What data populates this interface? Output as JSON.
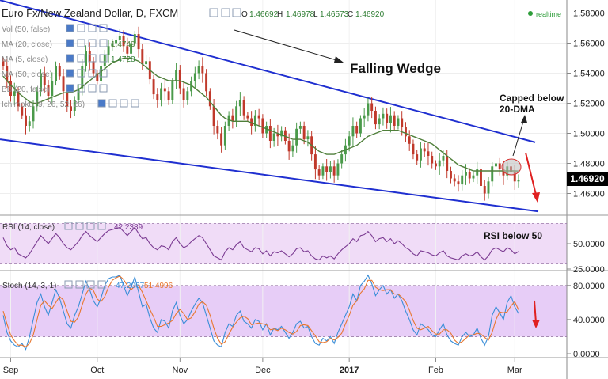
{
  "header": {
    "symbol": "Euro Fx/New Zealand Dollar, D, FXCM",
    "ohlc_o_label": "O",
    "ohlc_o": "1.46692",
    "ohlc_h_label": "H",
    "ohlc_h": "1.46978",
    "ohlc_l_label": "L",
    "ohlc_l": "1.46573",
    "ohlc_c_label": "C",
    "ohlc_c": "1.46920",
    "realtime": "realtime"
  },
  "indicators": [
    {
      "label": "Vol (50, false)",
      "value": ""
    },
    {
      "label": "MA (20, close)",
      "value": "1.4749"
    },
    {
      "label": "MA (5, close)",
      "value": "1.4728"
    },
    {
      "label": "MA (50, close)",
      "value": ""
    },
    {
      "label": "BB (20, false)",
      "value": ""
    },
    {
      "label": "Ichimoku (9, 26, 52, 26)",
      "value": ""
    }
  ],
  "annotations": {
    "pattern": "Falling Wedge",
    "capped": "Capped below\n20-DMA",
    "rsi_note": "RSI below 50"
  },
  "rsi_panel": {
    "label": "RSI (14, close)",
    "value": "42.2389"
  },
  "stoch_panel": {
    "label": "Stoch (14, 3, 1)",
    "k": "47.2067",
    "d": "51.4996"
  },
  "colors": {
    "up": "#4a9a4a",
    "down": "#c0392b",
    "ma20": "#4f7f3a",
    "wedge": "#1f2fd0",
    "rsi": "#7b3b92",
    "stoch_k": "#3a8ed8",
    "stoch_d": "#e8772e",
    "band": "#f0dcf7",
    "arrow": "#e02020",
    "price_box": "#000000"
  },
  "chart_data": [
    {
      "type": "candlestick",
      "title": "Euro Fx/New Zealand Dollar, D, FXCM",
      "ylim": [
        1.445,
        1.585
      ],
      "y_ticks": [
        "1.58000",
        "1.56000",
        "1.54000",
        "1.52000",
        "1.50000",
        "1.48000",
        "1.46000"
      ],
      "last_price": "1.46920",
      "x_ticks": [
        "Sep",
        "Oct",
        "Nov",
        "Dec",
        "2017",
        "Feb",
        "Mar"
      ],
      "close": [
        1.545,
        1.535,
        1.525,
        1.528,
        1.518,
        1.512,
        1.505,
        1.508,
        1.518,
        1.528,
        1.54,
        1.532,
        1.525,
        1.535,
        1.545,
        1.538,
        1.528,
        1.518,
        1.515,
        1.522,
        1.53,
        1.545,
        1.555,
        1.548,
        1.54,
        1.535,
        1.545,
        1.552,
        1.558,
        1.56,
        1.562,
        1.565,
        1.558,
        1.553,
        1.56,
        1.566,
        1.556,
        1.546,
        1.548,
        1.536,
        1.526,
        1.522,
        1.53,
        1.528,
        1.522,
        1.535,
        1.542,
        1.53,
        1.522,
        1.528,
        1.535,
        1.54,
        1.545,
        1.54,
        1.528,
        1.518,
        1.505,
        1.5,
        1.492,
        1.505,
        1.512,
        1.508,
        1.518,
        1.522,
        1.512,
        1.51,
        1.505,
        1.512,
        1.51,
        1.5,
        1.505,
        1.495,
        1.5,
        1.498,
        1.502,
        1.495,
        1.488,
        1.492,
        1.503,
        1.505,
        1.496,
        1.498,
        1.486,
        1.476,
        1.472,
        1.478,
        1.474,
        1.478,
        1.472,
        1.48,
        1.486,
        1.492,
        1.498,
        1.505,
        1.5,
        1.51,
        1.512,
        1.52,
        1.515,
        1.506,
        1.51,
        1.513,
        1.507,
        1.512,
        1.505,
        1.51,
        1.504,
        1.498,
        1.493,
        1.486,
        1.482,
        1.49,
        1.488,
        1.485,
        1.48,
        1.478,
        1.482,
        1.485,
        1.475,
        1.47,
        1.468,
        1.466,
        1.472,
        1.474,
        1.47,
        1.472,
        1.476,
        1.465,
        1.46,
        1.468,
        1.478,
        1.48,
        1.476,
        1.472,
        1.478,
        1.474,
        1.468,
        1.4692
      ],
      "ma20": [
        1.538,
        1.535,
        1.532,
        1.53,
        1.527,
        1.525,
        1.523,
        1.521,
        1.52,
        1.52,
        1.521,
        1.522,
        1.523,
        1.524,
        1.525,
        1.526,
        1.527,
        1.527,
        1.527,
        1.528,
        1.529,
        1.531,
        1.533,
        1.535,
        1.537,
        1.539,
        1.541,
        1.543,
        1.545,
        1.547,
        1.548,
        1.549,
        1.55,
        1.55,
        1.55,
        1.549,
        1.548,
        1.546,
        1.544,
        1.542,
        1.54,
        1.538,
        1.537,
        1.536,
        1.535,
        1.535,
        1.535,
        1.535,
        1.534,
        1.533,
        1.532,
        1.53,
        1.528,
        1.526,
        1.524,
        1.521,
        1.518,
        1.515,
        1.512,
        1.51,
        1.509,
        1.508,
        1.508,
        1.508,
        1.508,
        1.508,
        1.507,
        1.506,
        1.505,
        1.504,
        1.503,
        1.502,
        1.501,
        1.5,
        1.499,
        1.498,
        1.497,
        1.496,
        1.496,
        1.496,
        1.495,
        1.494,
        1.492,
        1.49,
        1.488,
        1.487,
        1.486,
        1.486,
        1.486,
        1.487,
        1.488,
        1.489,
        1.49,
        1.491,
        1.492,
        1.494,
        1.496,
        1.498,
        1.499,
        1.5,
        1.501,
        1.502,
        1.502,
        1.502,
        1.502,
        1.502,
        1.501,
        1.5,
        1.499,
        1.498,
        1.497,
        1.496,
        1.495,
        1.494,
        1.493,
        1.491,
        1.489,
        1.487,
        1.485,
        1.483,
        1.481,
        1.479,
        1.478,
        1.477,
        1.476,
        1.475,
        1.475,
        1.475,
        1.475,
        1.475,
        1.475,
        1.475,
        1.475,
        1.475,
        1.475,
        1.475,
        1.475,
        1.4749
      ],
      "wedge_upper": {
        "from": [
          "Aug 28",
          1.592
        ],
        "to": [
          "Feb 25",
          1.494
        ]
      },
      "wedge_lower": {
        "from": [
          "Aug 28",
          1.496
        ],
        "to": [
          "Feb 25",
          1.448
        ]
      }
    },
    {
      "type": "line",
      "name": "RSI (14, close)",
      "ylim": [
        25,
        75
      ],
      "y_ticks": [
        "50.0000",
        "25.0000"
      ],
      "band": [
        30,
        70
      ],
      "values": [
        56,
        48,
        44,
        46,
        40,
        38,
        36,
        40,
        46,
        52,
        58,
        54,
        50,
        55,
        60,
        56,
        50,
        46,
        44,
        48,
        52,
        58,
        62,
        58,
        55,
        52,
        56,
        60,
        63,
        64,
        65,
        66,
        62,
        58,
        62,
        66,
        60,
        55,
        56,
        50,
        46,
        44,
        48,
        47,
        44,
        52,
        56,
        50,
        46,
        48,
        52,
        55,
        58,
        56,
        50,
        44,
        38,
        36,
        34,
        42,
        46,
        44,
        49,
        52,
        46,
        44,
        42,
        46,
        45,
        40,
        43,
        38,
        42,
        41,
        43,
        40,
        37,
        40,
        45,
        46,
        42,
        43,
        38,
        35,
        34,
        38,
        36,
        38,
        35,
        40,
        44,
        47,
        50,
        55,
        52,
        58,
        59,
        62,
        58,
        52,
        55,
        56,
        52,
        55,
        50,
        53,
        50,
        46,
        44,
        40,
        38,
        43,
        42,
        41,
        39,
        38,
        41,
        43,
        38,
        36,
        35,
        34,
        38,
        40,
        38,
        39,
        42,
        37,
        34,
        38,
        44,
        46,
        44,
        42,
        46,
        44,
        40,
        42.2389
      ]
    },
    {
      "type": "line",
      "name": "Stoch (14, 3, 1)",
      "ylim": [
        0,
        90
      ],
      "y_ticks": [
        "80.0000",
        "40.0000",
        "0.0000"
      ],
      "band": [
        20,
        80
      ],
      "k": [
        45,
        25,
        15,
        10,
        8,
        12,
        5,
        20,
        40,
        60,
        70,
        55,
        45,
        60,
        75,
        65,
        50,
        35,
        30,
        45,
        55,
        70,
        85,
        75,
        62,
        55,
        65,
        80,
        88,
        90,
        90,
        92,
        80,
        68,
        78,
        90,
        72,
        55,
        58,
        42,
        30,
        25,
        40,
        38,
        30,
        50,
        60,
        45,
        35,
        40,
        50,
        58,
        65,
        60,
        45,
        30,
        15,
        10,
        8,
        25,
        35,
        32,
        45,
        50,
        38,
        35,
        30,
        40,
        38,
        28,
        35,
        22,
        30,
        28,
        32,
        25,
        18,
        25,
        35,
        38,
        30,
        32,
        20,
        12,
        10,
        18,
        15,
        20,
        12,
        25,
        35,
        45,
        55,
        70,
        62,
        80,
        85,
        92,
        82,
        68,
        75,
        80,
        70,
        75,
        65,
        70,
        62,
        50,
        40,
        28,
        22,
        35,
        32,
        28,
        22,
        20,
        28,
        35,
        22,
        15,
        12,
        10,
        20,
        25,
        20,
        22,
        30,
        18,
        10,
        20,
        45,
        55,
        48,
        40,
        60,
        68,
        55,
        47.2067
      ],
      "d": [
        50,
        35,
        22,
        15,
        10,
        10,
        8,
        12,
        22,
        40,
        57,
        62,
        57,
        53,
        60,
        67,
        63,
        50,
        38,
        37,
        43,
        57,
        70,
        77,
        74,
        64,
        61,
        67,
        78,
        86,
        89,
        91,
        87,
        80,
        75,
        79,
        80,
        72,
        62,
        52,
        43,
        32,
        32,
        34,
        36,
        39,
        47,
        52,
        47,
        40,
        42,
        49,
        58,
        61,
        57,
        45,
        30,
        18,
        11,
        14,
        23,
        31,
        37,
        42,
        44,
        41,
        34,
        35,
        36,
        35,
        34,
        28,
        29,
        27,
        30,
        28,
        25,
        23,
        26,
        33,
        34,
        33,
        27,
        21,
        14,
        13,
        14,
        18,
        16,
        19,
        24,
        35,
        45,
        57,
        62,
        71,
        76,
        86,
        86,
        78,
        75,
        74,
        75,
        75,
        70,
        70,
        66,
        61,
        51,
        39,
        30,
        28,
        30,
        32,
        27,
        23,
        23,
        28,
        28,
        24,
        16,
        12,
        14,
        18,
        22,
        22,
        24,
        23,
        19,
        16,
        25,
        40,
        49,
        48,
        49,
        56,
        61,
        51.4996
      ]
    }
  ]
}
